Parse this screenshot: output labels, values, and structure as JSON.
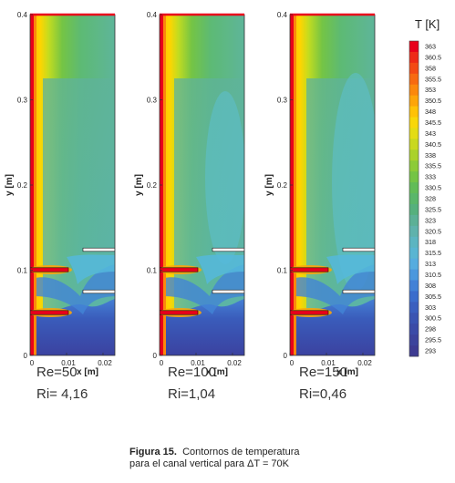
{
  "panels": [
    {
      "re": "Re=50",
      "ri": "Ri= 4,16"
    },
    {
      "re": "Re=100",
      "ri": "Ri=1,04"
    },
    {
      "re": "Re=150",
      "ri": "Ri=0,46"
    }
  ],
  "y_ticks": [
    "0.4",
    "0.3",
    "0.2",
    "0.1",
    "0"
  ],
  "x_ticks": [
    "0",
    "0.01",
    "0.02"
  ],
  "y_axis_label": "y [m]",
  "x_axis_label": "x [m]",
  "colorbar": {
    "title": "T [K]",
    "levels": [
      "363",
      "360.5",
      "358",
      "355.5",
      "353",
      "350.5",
      "348",
      "345.5",
      "343",
      "340.5",
      "338",
      "335.5",
      "333",
      "330.5",
      "328",
      "325.5",
      "323",
      "320.5",
      "318",
      "315.5",
      "313",
      "310.5",
      "308",
      "305.5",
      "303",
      "300.5",
      "298",
      "295.5",
      "293"
    ],
    "colors": [
      "#e8001b",
      "#ee2a17",
      "#f34a14",
      "#f76a10",
      "#fb880c",
      "#fda509",
      "#ffc207",
      "#f8d70a",
      "#e4dc14",
      "#c9d81f",
      "#aad22b",
      "#8ccb38",
      "#74c445",
      "#62bc57",
      "#5ab66a",
      "#56b07d",
      "#5cb096",
      "#5fb2ac",
      "#5cb5c1",
      "#59b5d2",
      "#56acdf",
      "#4c98dd",
      "#4281d6",
      "#3b6dcc",
      "#3a5fbf",
      "#3a54b2",
      "#3b4ba7",
      "#3c439c",
      "#3d3b92"
    ]
  },
  "caption": {
    "label": "Figura 15.",
    "line1": "Contornos de temperatura",
    "line2": "para el canal vertical para ΔT = 70K"
  }
}
